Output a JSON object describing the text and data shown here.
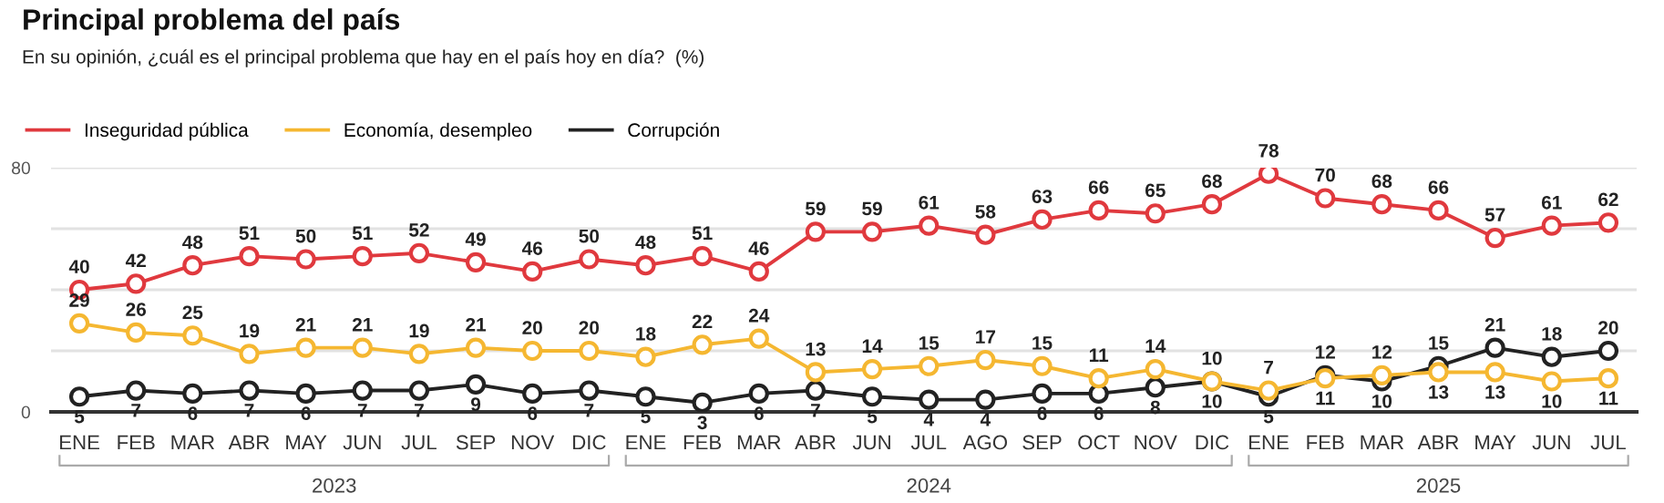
{
  "chart_data": {
    "type": "line",
    "title": "Principal problema del país",
    "subtitle": "En su opinión, ¿cuál es el principal problema que hay en el país hoy en día?  (%)",
    "categories": [
      "ENE",
      "FEB",
      "MAR",
      "ABR",
      "MAY",
      "JUN",
      "JUL",
      "SEP",
      "NOV",
      "DIC",
      "ENE",
      "FEB",
      "MAR",
      "ABR",
      "JUN",
      "JUL",
      "AGO",
      "SEP",
      "OCT",
      "NOV",
      "DIC",
      "ENE",
      "FEB",
      "MAR",
      "ABR",
      "MAY",
      "JUN",
      "JUL"
    ],
    "annotations": [
      "2023",
      "2024",
      "2025"
    ],
    "ylim": [
      0,
      80
    ],
    "yticks": [
      0,
      {
        "value": 20,
        "label": null
      },
      {
        "value": 40,
        "label": null
      },
      {
        "value": 60,
        "label": null
      },
      80
    ],
    "grid": "y",
    "legend": "top left",
    "marker": "circle",
    "line_style": "solid",
    "data_labels": true,
    "series": [
      {
        "name": "Inseguridad pública",
        "color": "#e0393e",
        "values": [
          40,
          42,
          48,
          51,
          50,
          51,
          52,
          49,
          46,
          50,
          48,
          51,
          46,
          59,
          59,
          61,
          58,
          63,
          66,
          65,
          68,
          78,
          70,
          68,
          66,
          57,
          61,
          62
        ]
      },
      {
        "name": "Economía, desempleo",
        "color": "#f5b731",
        "values": [
          29,
          26,
          25,
          19,
          21,
          21,
          19,
          21,
          20,
          20,
          18,
          22,
          24,
          13,
          14,
          15,
          17,
          15,
          11,
          14,
          10,
          7,
          11,
          12,
          13,
          13,
          10,
          11
        ]
      },
      {
        "name": "Corrupción",
        "color": "#222222",
        "values": [
          5,
          7,
          6,
          7,
          6,
          7,
          7,
          9,
          6,
          7,
          5,
          3,
          6,
          7,
          5,
          4,
          4,
          6,
          6,
          8,
          10,
          5,
          12,
          10,
          15,
          21,
          18,
          20
        ]
      }
    ]
  }
}
